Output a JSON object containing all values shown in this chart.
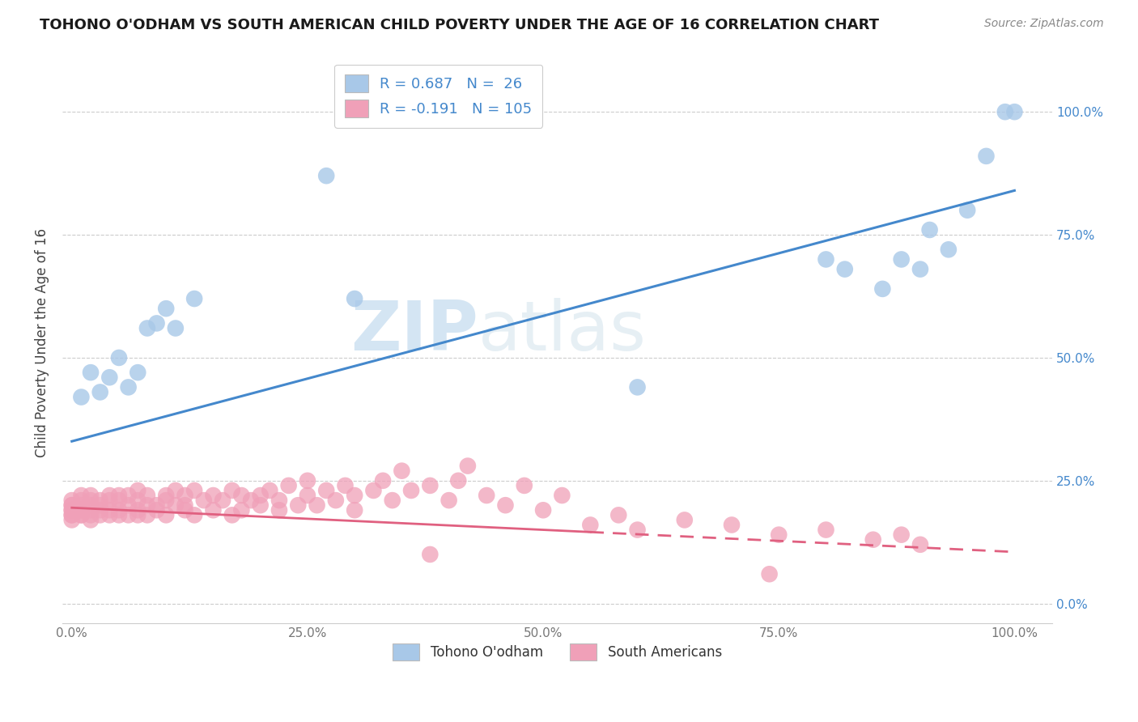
{
  "title": "TOHONO O'ODHAM VS SOUTH AMERICAN CHILD POVERTY UNDER THE AGE OF 16 CORRELATION CHART",
  "source": "Source: ZipAtlas.com",
  "ylabel": "Child Poverty Under the Age of 16",
  "watermark_zip": "ZIP",
  "watermark_atlas": "atlas",
  "blue_color": "#a8c8e8",
  "pink_color": "#f0a0b8",
  "line_blue": "#4488cc",
  "line_pink": "#e06080",
  "blue_scatter_x": [
    0.01,
    0.02,
    0.03,
    0.04,
    0.05,
    0.06,
    0.07,
    0.08,
    0.09,
    0.1,
    0.11,
    0.13,
    0.27,
    0.6,
    0.8,
    0.82,
    0.86,
    0.88,
    0.9,
    0.91,
    0.93,
    0.95,
    0.97,
    0.99,
    1.0,
    0.3
  ],
  "blue_scatter_y": [
    0.42,
    0.47,
    0.43,
    0.46,
    0.5,
    0.44,
    0.47,
    0.56,
    0.57,
    0.6,
    0.56,
    0.62,
    0.87,
    0.44,
    0.7,
    0.68,
    0.64,
    0.7,
    0.68,
    0.76,
    0.72,
    0.8,
    0.91,
    1.0,
    1.0,
    0.62
  ],
  "pink_scatter_x": [
    0.0,
    0.0,
    0.0,
    0.0,
    0.0,
    0.0,
    0.0,
    0.0,
    0.01,
    0.01,
    0.01,
    0.01,
    0.01,
    0.01,
    0.01,
    0.02,
    0.02,
    0.02,
    0.02,
    0.02,
    0.02,
    0.03,
    0.03,
    0.03,
    0.03,
    0.04,
    0.04,
    0.04,
    0.04,
    0.05,
    0.05,
    0.05,
    0.05,
    0.06,
    0.06,
    0.06,
    0.07,
    0.07,
    0.07,
    0.07,
    0.08,
    0.08,
    0.08,
    0.09,
    0.09,
    0.1,
    0.1,
    0.1,
    0.11,
    0.11,
    0.12,
    0.12,
    0.12,
    0.13,
    0.13,
    0.14,
    0.15,
    0.15,
    0.16,
    0.17,
    0.17,
    0.18,
    0.18,
    0.19,
    0.2,
    0.2,
    0.21,
    0.22,
    0.22,
    0.23,
    0.24,
    0.25,
    0.25,
    0.26,
    0.27,
    0.28,
    0.29,
    0.3,
    0.3,
    0.32,
    0.33,
    0.34,
    0.35,
    0.36,
    0.38,
    0.4,
    0.41,
    0.42,
    0.44,
    0.46,
    0.48,
    0.5,
    0.52,
    0.55,
    0.58,
    0.6,
    0.65,
    0.7,
    0.75,
    0.8,
    0.85,
    0.88,
    0.9,
    0.74,
    0.38
  ],
  "pink_scatter_y": [
    0.18,
    0.19,
    0.2,
    0.18,
    0.21,
    0.17,
    0.2,
    0.19,
    0.18,
    0.2,
    0.19,
    0.21,
    0.18,
    0.22,
    0.19,
    0.2,
    0.18,
    0.21,
    0.19,
    0.22,
    0.17,
    0.19,
    0.21,
    0.18,
    0.2,
    0.19,
    0.21,
    0.18,
    0.22,
    0.18,
    0.21,
    0.19,
    0.22,
    0.2,
    0.18,
    0.22,
    0.19,
    0.21,
    0.18,
    0.23,
    0.2,
    0.18,
    0.22,
    0.2,
    0.19,
    0.21,
    0.18,
    0.22,
    0.2,
    0.23,
    0.19,
    0.22,
    0.2,
    0.23,
    0.18,
    0.21,
    0.22,
    0.19,
    0.21,
    0.23,
    0.18,
    0.22,
    0.19,
    0.21,
    0.22,
    0.2,
    0.23,
    0.21,
    0.19,
    0.24,
    0.2,
    0.22,
    0.25,
    0.2,
    0.23,
    0.21,
    0.24,
    0.22,
    0.19,
    0.23,
    0.25,
    0.21,
    0.27,
    0.23,
    0.24,
    0.21,
    0.25,
    0.28,
    0.22,
    0.2,
    0.24,
    0.19,
    0.22,
    0.16,
    0.18,
    0.15,
    0.17,
    0.16,
    0.14,
    0.15,
    0.13,
    0.14,
    0.12,
    0.06,
    0.1
  ],
  "blue_line_x0": 0.0,
  "blue_line_x1": 1.0,
  "blue_line_y0": 0.33,
  "blue_line_y1": 0.84,
  "pink_line_x0": 0.0,
  "pink_line_x1": 1.0,
  "pink_line_y0": 0.195,
  "pink_line_y1": 0.105,
  "pink_line_dash_start": 0.55,
  "yticks": [
    0.0,
    0.25,
    0.5,
    0.75,
    1.0
  ],
  "yticklabels": [
    "0.0%",
    "25.0%",
    "50.0%",
    "75.0%",
    "100.0%"
  ],
  "xticks": [
    0.0,
    0.25,
    0.5,
    0.75,
    1.0
  ],
  "xticklabels": [
    "0.0%",
    "25.0%",
    "50.0%",
    "75.0%",
    "100.0%"
  ],
  "tick_color": "#aaaaaa",
  "label_color_blue": "#4488cc",
  "legend1_label": "R = 0.687   N =  26",
  "legend2_label": "R = -0.191   N = 105",
  "bottom_label1": "Tohono O'odham",
  "bottom_label2": "South Americans"
}
